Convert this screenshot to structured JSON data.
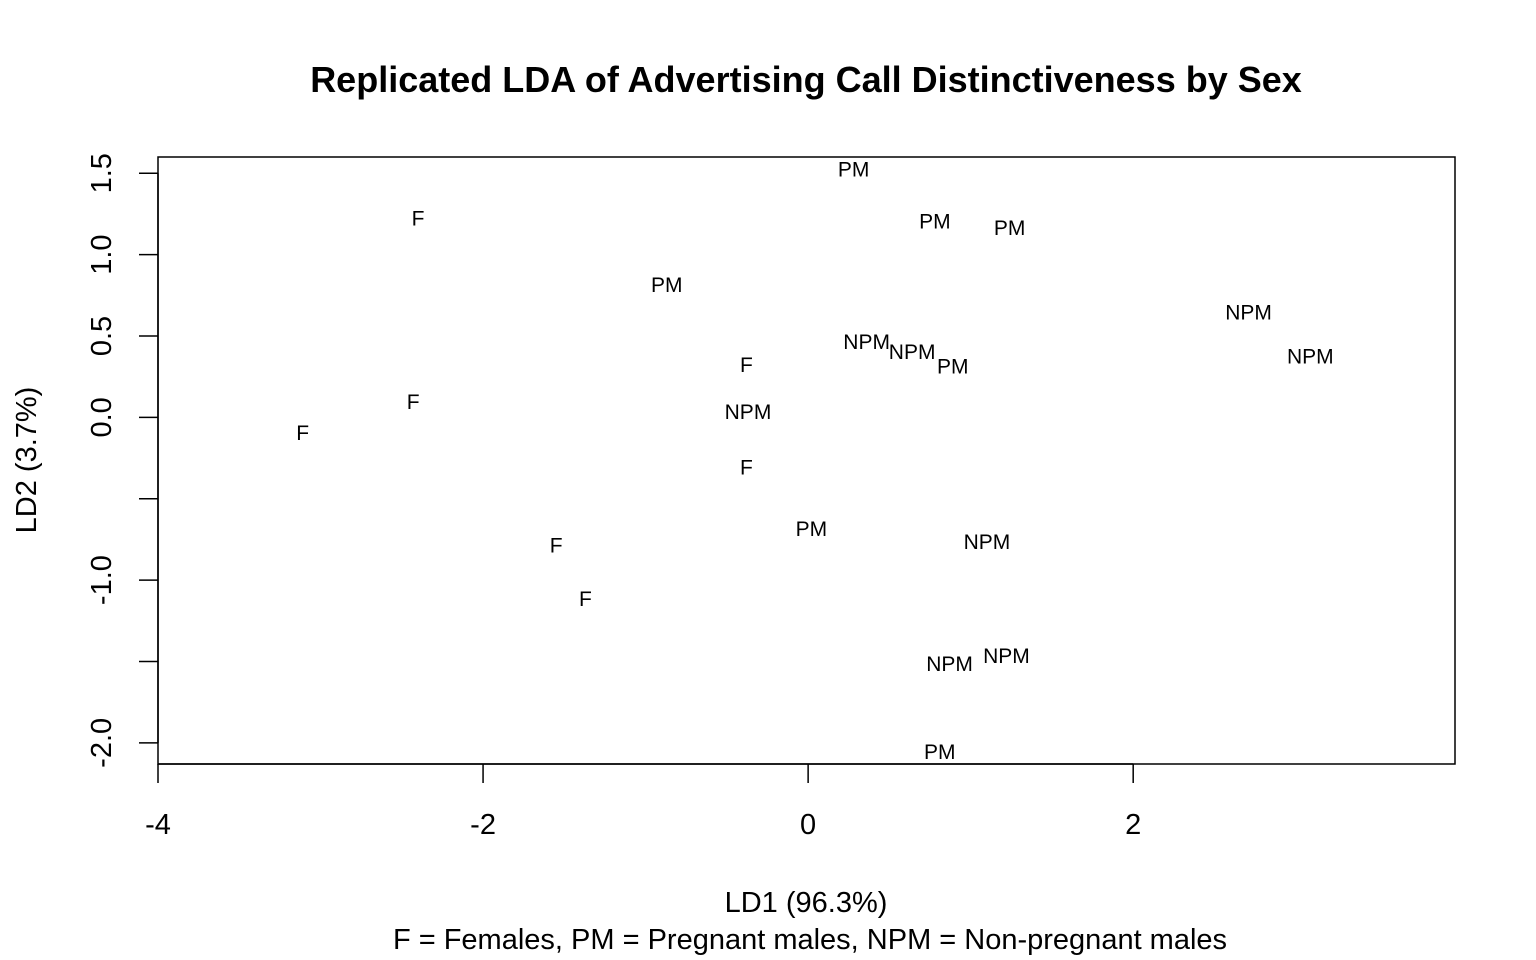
{
  "chart_data": {
    "type": "scatter",
    "title": "Replicated LDA of Advertising Call Distinctiveness by Sex",
    "xlabel": "LD1 (96.3%)",
    "ylabel": "LD2 (3.7%)",
    "caption": "F = Females, PM = Pregnant males, NPM = Non-pregnant males",
    "xlim": [
      -4.0,
      3.98
    ],
    "ylim": [
      -2.13,
      1.6
    ],
    "x_ticks": [
      -4,
      -2,
      0,
      2
    ],
    "x_tick_labels": [
      "-4",
      "-2",
      "0",
      "2"
    ],
    "y_ticks": [
      -2.0,
      -1.5,
      -1.0,
      -0.5,
      0.0,
      0.5,
      1.0,
      1.5
    ],
    "y_tick_labels": [
      "-2.0",
      "",
      "-1.0",
      "",
      "0.0",
      "0.5",
      "1.0",
      "1.5"
    ],
    "grid": false,
    "legend": "none",
    "points": [
      {
        "label": "PM",
        "x": 0.28,
        "y": 1.52
      },
      {
        "label": "F",
        "x": -2.4,
        "y": 1.22
      },
      {
        "label": "PM",
        "x": 0.78,
        "y": 1.2
      },
      {
        "label": "PM",
        "x": 1.24,
        "y": 1.16
      },
      {
        "label": "PM",
        "x": -0.87,
        "y": 0.81
      },
      {
        "label": "NPM",
        "x": 2.71,
        "y": 0.64
      },
      {
        "label": "NPM",
        "x": 0.36,
        "y": 0.46
      },
      {
        "label": "NPM",
        "x": 0.64,
        "y": 0.4
      },
      {
        "label": "PM",
        "x": 0.89,
        "y": 0.31
      },
      {
        "label": "NPM",
        "x": 3.09,
        "y": 0.37
      },
      {
        "label": "F",
        "x": -0.38,
        "y": 0.32
      },
      {
        "label": "F",
        "x": -2.43,
        "y": 0.09
      },
      {
        "label": "NPM",
        "x": -0.37,
        "y": 0.03
      },
      {
        "label": "F",
        "x": -3.11,
        "y": -0.1
      },
      {
        "label": "F",
        "x": -0.38,
        "y": -0.31
      },
      {
        "label": "PM",
        "x": 0.02,
        "y": -0.69
      },
      {
        "label": "NPM",
        "x": 1.1,
        "y": -0.77
      },
      {
        "label": "F",
        "x": -1.55,
        "y": -0.79
      },
      {
        "label": "F",
        "x": -1.37,
        "y": -1.12
      },
      {
        "label": "NPM",
        "x": 1.22,
        "y": -1.47
      },
      {
        "label": "NPM",
        "x": 0.87,
        "y": -1.52
      },
      {
        "label": "PM",
        "x": 0.81,
        "y": -2.06
      }
    ]
  }
}
